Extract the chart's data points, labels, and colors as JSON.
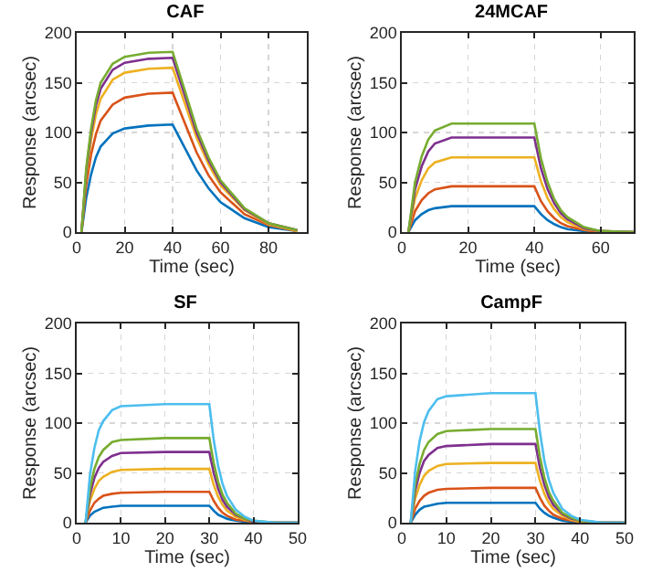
{
  "chart_data": [
    {
      "type": "line",
      "title": "CAF",
      "xlabel": "Time (sec)",
      "ylabel": "Response (arcsec)",
      "xlim": [
        0,
        96
      ],
      "xticks": [
        0,
        20,
        40,
        60,
        80
      ],
      "ylim": [
        0,
        200
      ],
      "yticks": [
        0,
        50,
        100,
        150,
        200
      ],
      "grid": true,
      "line_style": "solid",
      "x": [
        2,
        4,
        6,
        8,
        10,
        15,
        20,
        30,
        40,
        45,
        50,
        55,
        60,
        70,
        80,
        92
      ],
      "series": [
        {
          "color": "#0072bd",
          "values": [
            0,
            35,
            58,
            75,
            86,
            99,
            104,
            107,
            108,
            85,
            62,
            44,
            30,
            14,
            5,
            1
          ]
        },
        {
          "color": "#d95319",
          "values": [
            0,
            48,
            78,
            98,
            112,
            128,
            135,
            139,
            140,
            110,
            80,
            57,
            40,
            18,
            7,
            1
          ]
        },
        {
          "color": "#edb120",
          "values": [
            0,
            58,
            93,
            118,
            134,
            153,
            160,
            164,
            165,
            130,
            95,
            68,
            47,
            22,
            8,
            1
          ]
        },
        {
          "color": "#7e2f8e",
          "values": [
            0,
            62,
            100,
            127,
            144,
            163,
            170,
            174,
            175,
            138,
            100,
            72,
            50,
            23,
            9,
            2
          ]
        },
        {
          "color": "#77ac30",
          "values": [
            0,
            65,
            104,
            132,
            150,
            169,
            176,
            180,
            181,
            143,
            104,
            75,
            52,
            24,
            9,
            2
          ]
        }
      ]
    },
    {
      "type": "line",
      "title": "24MCAF",
      "xlabel": "Time (sec)",
      "ylabel": "Response (arcsec)",
      "xlim": [
        0,
        70
      ],
      "xticks": [
        0,
        20,
        40,
        60
      ],
      "ylim": [
        0,
        200
      ],
      "yticks": [
        0,
        50,
        100,
        150,
        200
      ],
      "grid": true,
      "line_style": "solid",
      "x": [
        2,
        4,
        6,
        8,
        10,
        15,
        20,
        40,
        42,
        44,
        46,
        48,
        50,
        55,
        60,
        70
      ],
      "series": [
        {
          "color": "#0072bd",
          "values": [
            0,
            12,
            18,
            22,
            24,
            26,
            26,
            26,
            18,
            12,
            8,
            5,
            3,
            1,
            0,
            0
          ]
        },
        {
          "color": "#d95319",
          "values": [
            0,
            21,
            32,
            39,
            43,
            46,
            46,
            46,
            31,
            21,
            14,
            9,
            6,
            2,
            0,
            0
          ]
        },
        {
          "color": "#edb120",
          "values": [
            0,
            34,
            52,
            64,
            70,
            75,
            75,
            75,
            51,
            34,
            23,
            15,
            10,
            3,
            1,
            0
          ]
        },
        {
          "color": "#7e2f8e",
          "values": [
            0,
            43,
            66,
            81,
            89,
            95,
            95,
            95,
            64,
            43,
            29,
            19,
            13,
            4,
            1,
            0
          ]
        },
        {
          "color": "#77ac30",
          "values": [
            0,
            50,
            76,
            93,
            102,
            109,
            109,
            109,
            74,
            50,
            33,
            22,
            15,
            5,
            1,
            0
          ]
        }
      ]
    },
    {
      "type": "line",
      "title": "SF",
      "xlabel": "Time (sec)",
      "ylabel": "Response (arcsec)",
      "xlim": [
        0,
        50
      ],
      "xticks": [
        0,
        10,
        20,
        30,
        40,
        50
      ],
      "ylim": [
        0,
        200
      ],
      "yticks": [
        0,
        50,
        100,
        150,
        200
      ],
      "grid": true,
      "line_style": "solid",
      "x": [
        2,
        3,
        4,
        5,
        6,
        8,
        10,
        20,
        30,
        31,
        32,
        33,
        34,
        36,
        38,
        40,
        45,
        50
      ],
      "series": [
        {
          "color": "#0072bd",
          "values": [
            0,
            7,
            11,
            13,
            15,
            16,
            17,
            17,
            17,
            12,
            8,
            6,
            4,
            2,
            1,
            0,
            0,
            0
          ]
        },
        {
          "color": "#d95319",
          "values": [
            0,
            12,
            20,
            24,
            27,
            29,
            30,
            31,
            31,
            22,
            15,
            10,
            7,
            3,
            2,
            1,
            0,
            0
          ]
        },
        {
          "color": "#edb120",
          "values": [
            0,
            22,
            34,
            42,
            46,
            51,
            53,
            54,
            54,
            38,
            26,
            18,
            12,
            6,
            3,
            1,
            0,
            0
          ]
        },
        {
          "color": "#7e2f8e",
          "values": [
            0,
            28,
            45,
            55,
            61,
            67,
            70,
            71,
            71,
            50,
            34,
            23,
            16,
            8,
            4,
            1,
            0,
            0
          ]
        },
        {
          "color": "#77ac30",
          "values": [
            0,
            34,
            54,
            66,
            73,
            81,
            83,
            85,
            85,
            60,
            41,
            28,
            20,
            9,
            4,
            2,
            0,
            0
          ]
        },
        {
          "color": "#4dbeee",
          "values": [
            0,
            48,
            75,
            93,
            102,
            113,
            117,
            119,
            119,
            83,
            57,
            39,
            27,
            13,
            6,
            2,
            0,
            0
          ]
        }
      ]
    },
    {
      "type": "line",
      "title": "CampF",
      "xlabel": "Time (sec)",
      "ylabel": "Response (arcsec)",
      "xlim": [
        0,
        50
      ],
      "xticks": [
        0,
        10,
        20,
        30,
        40,
        50
      ],
      "ylim": [
        0,
        200
      ],
      "yticks": [
        0,
        50,
        100,
        150,
        200
      ],
      "grid": true,
      "line_style": "solid",
      "x": [
        2,
        3,
        4,
        5,
        6,
        8,
        10,
        20,
        30,
        31,
        32,
        33,
        34,
        36,
        38,
        40,
        45,
        50
      ],
      "series": [
        {
          "color": "#0072bd",
          "values": [
            0,
            8,
            13,
            16,
            17,
            19,
            20,
            20,
            20,
            14,
            10,
            7,
            5,
            2,
            1,
            0,
            0,
            0
          ]
        },
        {
          "color": "#d95319",
          "values": [
            0,
            14,
            22,
            27,
            30,
            33,
            34,
            35,
            35,
            25,
            17,
            12,
            8,
            4,
            2,
            1,
            0,
            0
          ]
        },
        {
          "color": "#edb120",
          "values": [
            0,
            24,
            38,
            47,
            52,
            57,
            59,
            60,
            60,
            42,
            29,
            20,
            14,
            7,
            3,
            1,
            0,
            0
          ]
        },
        {
          "color": "#7e2f8e",
          "values": [
            0,
            32,
            50,
            62,
            68,
            75,
            77,
            79,
            79,
            55,
            38,
            26,
            18,
            9,
            4,
            2,
            0,
            0
          ]
        },
        {
          "color": "#77ac30",
          "values": [
            0,
            38,
            59,
            73,
            81,
            89,
            92,
            94,
            94,
            66,
            45,
            31,
            22,
            10,
            5,
            2,
            0,
            0
          ]
        },
        {
          "color": "#4dbeee",
          "values": [
            0,
            52,
            82,
            101,
            112,
            124,
            127,
            130,
            130,
            91,
            62,
            43,
            30,
            14,
            7,
            3,
            0,
            0
          ]
        }
      ]
    }
  ]
}
